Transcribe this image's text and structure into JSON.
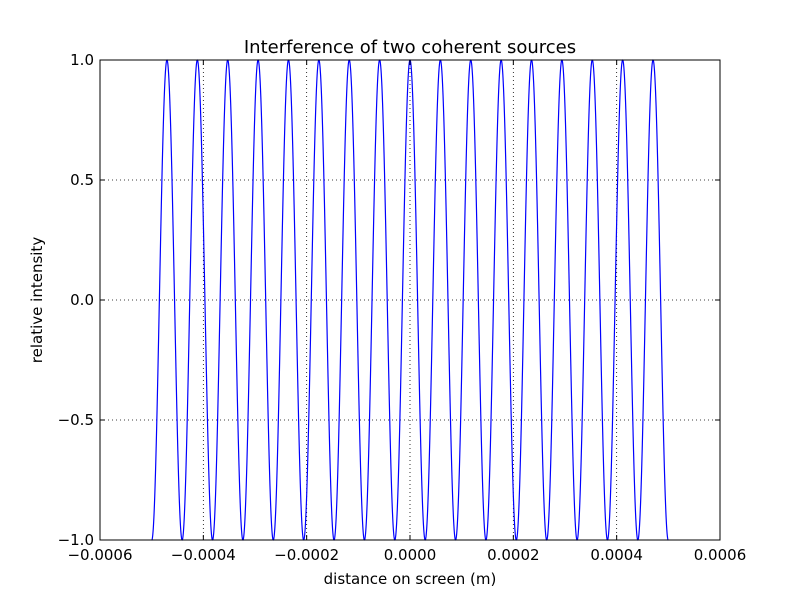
{
  "chart_data": {
    "type": "line",
    "title": "Interference of two coherent sources",
    "xlabel": "distance on screen (m)",
    "ylabel": "relative intensity",
    "xlim": [
      -0.0006,
      0.0006
    ],
    "ylim": [
      -1.0,
      1.0
    ],
    "x_ticks": [
      -0.0006,
      -0.0004,
      -0.0002,
      0.0,
      0.0002,
      0.0004,
      0.0006
    ],
    "x_tick_labels": [
      "−0.0006",
      "−0.0004",
      "−0.0002",
      "0.0000",
      "0.0002",
      "0.0004",
      "0.0006"
    ],
    "y_ticks": [
      -1.0,
      -0.5,
      0.0,
      0.5,
      1.0
    ],
    "y_tick_labels": [
      "−1.0",
      "−0.5",
      "0.0",
      "0.5",
      "1.0"
    ],
    "grid": true,
    "grid_style": "dotted",
    "series": [
      {
        "color": "#0000ff",
        "function": "y = cos(2π x / period)",
        "x_range": [
          -0.0005,
          0.0005
        ],
        "period": 5.88e-05,
        "peaks_x": [
          -0.00047,
          -0.00041,
          -0.000353,
          -0.000294,
          -0.000235,
          -0.000176,
          -0.000118,
          -5.88e-05,
          0.0,
          5.88e-05,
          0.000118,
          0.000176,
          0.000235,
          0.000294,
          0.000353,
          0.00041,
          0.00047
        ],
        "peak_y": 1.0,
        "trough_y": -1.0
      }
    ]
  }
}
